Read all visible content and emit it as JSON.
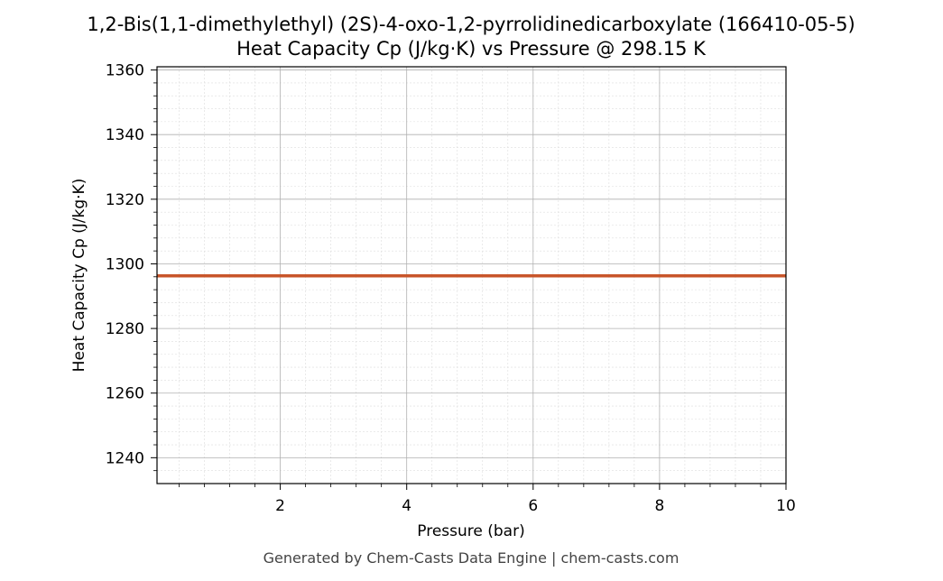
{
  "chart_data": {
    "type": "line",
    "title": "1,2-Bis(1,1-dimethylethyl) (2S)-4-oxo-1,2-pyrrolidinedicarboxylate (166410-05-5)",
    "subtitle": "Heat Capacity Cp (J/kg·K) vs Pressure @ 298.15 K",
    "xlabel": "Pressure (bar)",
    "ylabel": "Heat Capacity Cp (J/kg·K)",
    "xlim": [
      0.05,
      10
    ],
    "ylim": [
      1232,
      1361
    ],
    "xticks": [
      2,
      4,
      6,
      8,
      10
    ],
    "yticks": [
      1240,
      1260,
      1280,
      1300,
      1320,
      1340,
      1360
    ],
    "grid": true,
    "minor_grid": true,
    "series": [
      {
        "x": [
          0.05,
          10
        ],
        "y": [
          1296.3,
          1296.3
        ],
        "color": "#c8552a"
      }
    ]
  },
  "footer": "Generated by Chem-Casts Data Engine | chem-casts.com"
}
